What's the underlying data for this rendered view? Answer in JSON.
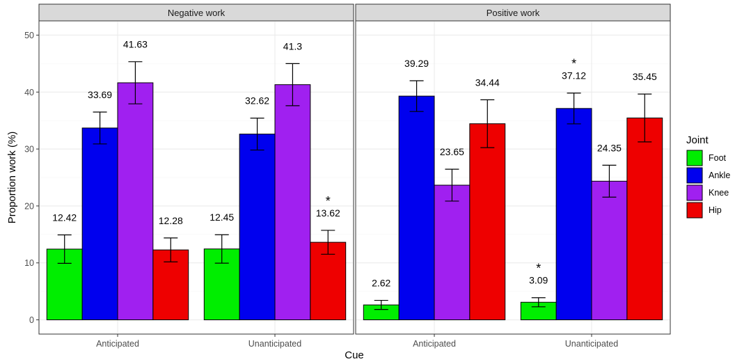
{
  "chart_data": {
    "type": "bar",
    "facets": [
      {
        "title": "Negative work",
        "categories": [
          "Anticipated",
          "Unanticipated"
        ],
        "series": [
          {
            "name": "Foot",
            "values": [
              12.42,
              12.45
            ],
            "errors": [
              2.5,
              2.5
            ],
            "stars": [
              false,
              false
            ]
          },
          {
            "name": "Ankle",
            "values": [
              33.69,
              32.62
            ],
            "errors": [
              2.8,
              2.8
            ],
            "stars": [
              false,
              false
            ]
          },
          {
            "name": "Knee",
            "values": [
              41.63,
              41.3
            ],
            "errors": [
              3.7,
              3.7
            ],
            "stars": [
              false,
              false
            ]
          },
          {
            "name": "Hip",
            "values": [
              12.28,
              13.62
            ],
            "errors": [
              2.1,
              2.1
            ],
            "stars": [
              false,
              true
            ]
          }
        ]
      },
      {
        "title": "Positive work",
        "categories": [
          "Anticipated",
          "Unanticipated"
        ],
        "series": [
          {
            "name": "Foot",
            "values": [
              2.62,
              3.09
            ],
            "errors": [
              0.8,
              0.8
            ],
            "stars": [
              false,
              true
            ]
          },
          {
            "name": "Ankle",
            "values": [
              39.29,
              37.12
            ],
            "errors": [
              2.7,
              2.7
            ],
            "stars": [
              false,
              true
            ]
          },
          {
            "name": "Knee",
            "values": [
              23.65,
              24.35
            ],
            "errors": [
              2.8,
              2.8
            ],
            "stars": [
              false,
              false
            ]
          },
          {
            "name": "Hip",
            "values": [
              34.44,
              35.45
            ],
            "errors": [
              4.2,
              4.2
            ],
            "stars": [
              false,
              false
            ]
          }
        ]
      }
    ],
    "xlabel": "Cue",
    "ylabel": "Proportion work (%)",
    "ylim": [
      -2.5,
      52.5
    ],
    "yticks": [
      0,
      10,
      20,
      30,
      40,
      50
    ],
    "grid": true,
    "legend": {
      "title": "Joint",
      "placement": "right",
      "entries": [
        "Foot",
        "Ankle",
        "Knee",
        "Hip"
      ]
    },
    "significance_marker": "*",
    "colors": {
      "Foot": "#00ee00",
      "Ankle": "#0000ee",
      "Knee": "#a020f0",
      "Hip": "#ee0000"
    }
  }
}
